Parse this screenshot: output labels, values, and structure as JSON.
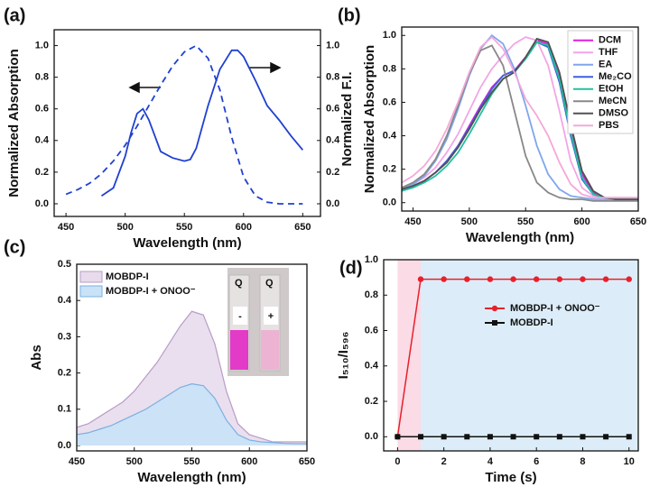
{
  "chart_data": [
    {
      "type": "line",
      "label": "(a)",
      "xlabel": "Wavelength (nm)",
      "ylabel": "Normalized Absorption",
      "xlim": [
        440,
        665
      ],
      "ylim": [
        -0.08,
        1.1
      ],
      "y2lim": [
        -0.08,
        1.1
      ],
      "xticks": [
        450,
        500,
        550,
        600,
        650
      ],
      "yticks": [
        {
          "value": 0,
          "label": "0.0"
        },
        0.2,
        0.4,
        0.6,
        0.8,
        {
          "value": 1,
          "label": "1.0"
        }
      ],
      "y2ticks": [
        {
          "value": 0,
          "label": "0.0"
        },
        0.2,
        0.4,
        0.6,
        0.8,
        {
          "value": 1,
          "label": "1.0"
        }
      ],
      "series": [
        {
          "color": "#2040d0",
          "dash": true,
          "x": [
            450,
            460,
            470,
            480,
            490,
            500,
            510,
            520,
            530,
            540,
            550,
            560,
            570,
            580,
            590,
            600,
            610,
            620,
            630,
            640,
            650
          ],
          "values": [
            0.06,
            0.09,
            0.13,
            0.19,
            0.27,
            0.37,
            0.49,
            0.62,
            0.75,
            0.87,
            0.96,
            1.0,
            0.92,
            0.72,
            0.42,
            0.17,
            0.05,
            0.01,
            0,
            0,
            0
          ]
        },
        {
          "color": "#2040d0",
          "axis": "y2",
          "x": [
            480,
            490,
            500,
            505,
            510,
            515,
            520,
            530,
            540,
            550,
            555,
            560,
            570,
            580,
            590,
            595,
            600,
            610,
            620,
            630,
            640,
            650
          ],
          "values": [
            0.05,
            0.1,
            0.3,
            0.45,
            0.57,
            0.6,
            0.53,
            0.33,
            0.29,
            0.27,
            0.28,
            0.35,
            0.62,
            0.85,
            0.97,
            0.97,
            0.93,
            0.78,
            0.62,
            0.53,
            0.43,
            0.34
          ]
        }
      ]
    },
    {
      "type": "line",
      "label": "(b)",
      "xlabel": "Wavelength (nm)",
      "ylabel": [
        "Normalized F.I.",
        "Normalized Absorption"
      ],
      "xlim": [
        440,
        650
      ],
      "ylim": [
        -0.05,
        1.05
      ],
      "xticks": [
        450,
        500,
        550,
        600,
        650
      ],
      "yticks": [
        {
          "value": 0,
          "label": "0.0"
        },
        0.2,
        0.4,
        0.6,
        0.8,
        {
          "value": 1,
          "label": "1.0"
        }
      ],
      "legend": "upper right",
      "x": [
        440,
        450,
        460,
        470,
        480,
        490,
        500,
        510,
        520,
        530,
        540,
        550,
        560,
        570,
        580,
        590,
        600,
        610,
        620,
        630,
        640,
        650
      ],
      "series": [
        {
          "name": "DCM",
          "color": "#e020e0",
          "values": [
            0.08,
            0.1,
            0.13,
            0.18,
            0.25,
            0.34,
            0.46,
            0.58,
            0.69,
            0.76,
            0.79,
            0.87,
            0.97,
            0.95,
            0.75,
            0.44,
            0.17,
            0.06,
            0.03,
            0.02,
            0.02,
            0.02
          ]
        },
        {
          "name": "THF",
          "color": "#f2a6e6",
          "values": [
            0.09,
            0.11,
            0.15,
            0.21,
            0.3,
            0.41,
            0.55,
            0.69,
            0.8,
            0.88,
            0.95,
            0.99,
            0.97,
            0.82,
            0.55,
            0.25,
            0.09,
            0.04,
            0.03,
            0.03,
            0.03,
            0.03
          ]
        },
        {
          "name": "EA",
          "color": "#7fa6ee",
          "values": [
            0.08,
            0.11,
            0.16,
            0.25,
            0.38,
            0.56,
            0.76,
            0.92,
            1.0,
            0.95,
            0.8,
            0.58,
            0.34,
            0.17,
            0.08,
            0.04,
            0.03,
            0.02,
            0.02,
            0.02,
            0.02,
            0.02
          ]
        },
        {
          "name": "Me₂CO",
          "color": "#3e5fe0",
          "values": [
            0.08,
            0.1,
            0.13,
            0.18,
            0.25,
            0.34,
            0.45,
            0.57,
            0.68,
            0.76,
            0.79,
            0.86,
            0.96,
            0.93,
            0.72,
            0.4,
            0.14,
            0.05,
            0.03,
            0.02,
            0.02,
            0.02
          ]
        },
        {
          "name": "EtOH",
          "color": "#20c0a0",
          "values": [
            0.07,
            0.09,
            0.12,
            0.16,
            0.22,
            0.3,
            0.41,
            0.53,
            0.65,
            0.74,
            0.78,
            0.86,
            0.96,
            0.94,
            0.74,
            0.42,
            0.15,
            0.05,
            0.03,
            0.02,
            0.02,
            0.02
          ]
        },
        {
          "name": "MeCN",
          "color": "#888888",
          "values": [
            0.09,
            0.12,
            0.17,
            0.26,
            0.4,
            0.58,
            0.77,
            0.91,
            0.94,
            0.82,
            0.55,
            0.28,
            0.12,
            0.06,
            0.03,
            0.02,
            0.02,
            0.01,
            0.01,
            0.01,
            0.01,
            0.01
          ]
        },
        {
          "name": "DMSO",
          "color": "#505050",
          "values": [
            0.08,
            0.1,
            0.13,
            0.18,
            0.24,
            0.33,
            0.44,
            0.56,
            0.66,
            0.74,
            0.78,
            0.87,
            0.98,
            0.96,
            0.78,
            0.47,
            0.19,
            0.07,
            0.03,
            0.02,
            0.02,
            0.02
          ]
        },
        {
          "name": "PBS",
          "color": "#f4a8d8",
          "values": [
            0.12,
            0.16,
            0.22,
            0.31,
            0.44,
            0.6,
            0.78,
            0.93,
            0.99,
            0.92,
            0.78,
            0.62,
            0.52,
            0.4,
            0.24,
            0.11,
            0.05,
            0.03,
            0.03,
            0.03,
            0.03,
            0.03
          ]
        }
      ]
    },
    {
      "type": "area",
      "label": "(c)",
      "xlabel": "Wavelength (nm)",
      "ylabel": "Abs",
      "xlim": [
        450,
        650
      ],
      "ylim": [
        -0.015,
        0.5
      ],
      "xticks": [
        450,
        500,
        550,
        600,
        650
      ],
      "yticks": [
        {
          "value": 0,
          "label": "0.0"
        },
        0.1,
        0.2,
        0.3,
        0.4,
        0.5
      ],
      "legend": "upper left",
      "inset": {
        "caps": [
          "Q",
          "Q"
        ],
        "signs": [
          "-",
          "+"
        ]
      },
      "x": [
        450,
        460,
        470,
        480,
        490,
        500,
        510,
        520,
        530,
        540,
        550,
        560,
        570,
        580,
        590,
        600,
        610,
        620,
        630,
        640,
        650
      ],
      "series": [
        {
          "name": "MOBDP-I",
          "color": "#b89cc8",
          "fill": "#e8dbec",
          "values": [
            0.05,
            0.06,
            0.08,
            0.1,
            0.12,
            0.15,
            0.19,
            0.23,
            0.28,
            0.33,
            0.37,
            0.36,
            0.28,
            0.15,
            0.06,
            0.03,
            0.02,
            0.01,
            0.01,
            0.01,
            0.01
          ]
        },
        {
          "name": "MOBDP-I + ONOO⁻",
          "color": "#7ab0e0",
          "fill": "#c9e2f7",
          "values": [
            0.03,
            0.035,
            0.045,
            0.055,
            0.07,
            0.085,
            0.1,
            0.12,
            0.14,
            0.16,
            0.17,
            0.165,
            0.13,
            0.07,
            0.03,
            0.015,
            0.01,
            0.008,
            0.006,
            0.005,
            0.005
          ]
        }
      ]
    },
    {
      "type": "line",
      "label": "(d)",
      "xlabel": "Time (s)",
      "ylabel": "I₅₁₀/I₅₉₆",
      "xlim": [
        -0.6,
        10.4
      ],
      "ylim": [
        -0.08,
        1.0
      ],
      "xticks": [
        0,
        2,
        4,
        6,
        8,
        10
      ],
      "yticks": [
        {
          "value": 0,
          "label": "0.0"
        },
        0.2,
        0.4,
        0.6,
        0.8,
        {
          "value": 1,
          "label": "1.0"
        }
      ],
      "legend": "center right",
      "spans": [
        {
          "x0": 0,
          "x1": 1,
          "color": "#fadbe6"
        },
        {
          "x0": 1,
          "x1": 10.4,
          "color": "#dcedf9"
        }
      ],
      "x": [
        0,
        1,
        2,
        3,
        4,
        5,
        6,
        7,
        8,
        9,
        10
      ],
      "series": [
        {
          "name": "MOBDP-I + ONOO⁻",
          "color": "#e8202a",
          "marker": "circle",
          "values": [
            0,
            0.89,
            0.89,
            0.89,
            0.89,
            0.89,
            0.89,
            0.89,
            0.89,
            0.89,
            0.89
          ]
        },
        {
          "name": "MOBDP-I",
          "color": "#111111",
          "marker": "square",
          "values": [
            0,
            0,
            0,
            0,
            0,
            0,
            0,
            0,
            0,
            0,
            0
          ]
        }
      ]
    }
  ]
}
